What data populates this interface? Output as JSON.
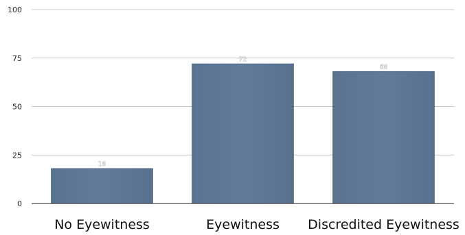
{
  "chart_data": {
    "type": "bar",
    "categories": [
      "No Eyewitness",
      "Eyewitness",
      "Discredited Eyewitness"
    ],
    "values": [
      18,
      72,
      68
    ],
    "data_labels": [
      "18",
      "72",
      "68"
    ],
    "title": "",
    "xlabel": "",
    "ylabel": "",
    "ylim": [
      0,
      100
    ],
    "yticks": [
      0,
      25,
      50,
      75,
      100
    ],
    "ytick_labels": [
      "0",
      "25",
      "50",
      "75",
      "100"
    ],
    "grid": true,
    "legend": "none",
    "colors": {
      "bar": "#5f7896",
      "bar_edge": "#4b617c",
      "grid": "#c9c9c9",
      "axis": "#222222"
    }
  }
}
